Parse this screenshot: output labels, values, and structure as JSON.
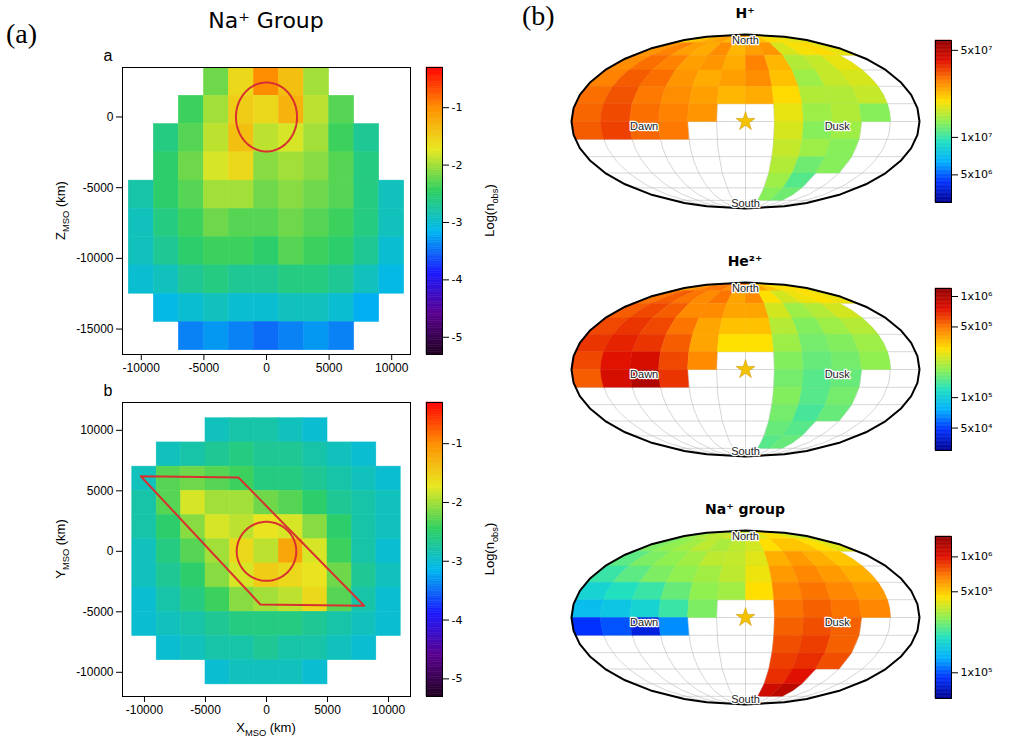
{
  "chart_data": [
    {
      "type": "heatmap",
      "panel": "(a)",
      "group_title": "Na⁺ Group",
      "letter": "a",
      "y_label": [
        "Z",
        "MSO",
        " (km)"
      ],
      "x": [
        -10000,
        -8000,
        -6000,
        -4000,
        -2000,
        0,
        2000,
        4000,
        6000,
        8000,
        10000
      ],
      "y": [
        2500,
        500,
        -1500,
        -3500,
        -5500,
        -7500,
        -9500,
        -11500,
        -13500,
        -15500
      ],
      "z": [
        [
          null,
          null,
          null,
          -2.2,
          -1.6,
          -1.0,
          -1.4,
          -2.0,
          null,
          null,
          null
        ],
        [
          null,
          null,
          -2.4,
          -2.0,
          -1.5,
          -1.6,
          -1.3,
          -1.9,
          -2.3,
          null,
          null
        ],
        [
          null,
          -2.6,
          -2.3,
          -1.9,
          -1.4,
          -1.9,
          -1.8,
          -2.0,
          -2.4,
          -2.7,
          null
        ],
        [
          null,
          -2.5,
          -2.2,
          -1.8,
          -1.6,
          -2.1,
          -2.0,
          -2.1,
          -2.3,
          -2.6,
          null
        ],
        [
          -2.8,
          -2.5,
          -2.3,
          -2.0,
          -2.0,
          -2.2,
          -2.1,
          -2.2,
          -2.3,
          -2.6,
          -2.9
        ],
        [
          -2.9,
          -2.6,
          -2.4,
          -2.2,
          -2.3,
          -2.3,
          -2.2,
          -2.3,
          -2.4,
          -2.6,
          -2.9
        ],
        [
          -2.9,
          -2.7,
          -2.5,
          -2.4,
          -2.4,
          -2.5,
          -2.3,
          -2.4,
          -2.5,
          -2.7,
          -3.0
        ],
        [
          -3.0,
          -2.9,
          -2.7,
          -2.6,
          -2.7,
          -2.7,
          -2.6,
          -2.6,
          -2.7,
          -2.9,
          -3.1
        ],
        [
          null,
          -3.1,
          -3.0,
          -2.9,
          -3.0,
          -3.0,
          -2.9,
          -2.9,
          -3.0,
          -3.2,
          null
        ],
        [
          null,
          null,
          -3.4,
          -3.3,
          -3.4,
          -3.5,
          -3.4,
          -3.3,
          -3.4,
          null,
          null
        ]
      ],
      "xlim": [
        -11500,
        11500
      ],
      "xticks": [
        -10000,
        -5000,
        0,
        5000,
        10000
      ],
      "ylim": [
        -16800,
        3500
      ],
      "yticks": [
        -15000,
        -10000,
        -5000,
        0
      ],
      "colorbar": {
        "label": [
          "Log(n",
          "obs",
          ")"
        ],
        "range": [
          -5.3,
          -0.3
        ],
        "ticks": [
          -5,
          -4,
          -3,
          -2,
          -1
        ]
      },
      "circle": {
        "x": 0,
        "y": 0,
        "r": 2440,
        "color": "#d83030"
      }
    },
    {
      "type": "heatmap",
      "letter": "b",
      "x_label": [
        "X",
        "MSO",
        " (km)"
      ],
      "y_label": [
        "Y",
        "MSO",
        " (km)"
      ],
      "x": [
        -10000,
        -8000,
        -6000,
        -4000,
        -2000,
        0,
        2000,
        4000,
        6000,
        8000,
        10000
      ],
      "y": [
        10000,
        8000,
        6000,
        4000,
        2000,
        0,
        -2000,
        -4000,
        -6000,
        -8000,
        -10000
      ],
      "z": [
        [
          null,
          null,
          null,
          -2.9,
          -2.8,
          -2.8,
          -2.9,
          -3.0,
          null,
          null,
          null
        ],
        [
          null,
          -2.9,
          -2.8,
          -2.7,
          -2.6,
          -2.7,
          -2.7,
          -2.8,
          -2.9,
          -3.0,
          null
        ],
        [
          -2.9,
          -2.3,
          -2.2,
          -2.3,
          -2.4,
          -2.6,
          -2.6,
          -2.7,
          -2.8,
          -2.9,
          -3.0
        ],
        [
          -2.8,
          -2.3,
          -1.8,
          -2.0,
          -2.0,
          -2.2,
          -2.3,
          -2.5,
          -2.7,
          -2.8,
          -2.9
        ],
        [
          -2.8,
          -2.5,
          -2.1,
          -1.8,
          -1.9,
          -1.7,
          -1.8,
          -2.1,
          -2.5,
          -2.8,
          -2.9
        ],
        [
          -2.9,
          -2.6,
          -2.3,
          -2.0,
          -1.6,
          -1.9,
          -1.2,
          -1.8,
          -2.4,
          -2.8,
          -3.0
        ],
        [
          -2.9,
          -2.7,
          -2.5,
          -2.1,
          -1.8,
          -1.5,
          -1.6,
          -1.7,
          -2.2,
          -2.7,
          -2.9
        ],
        [
          -3.0,
          -2.8,
          -2.6,
          -2.4,
          -2.1,
          -2.0,
          -1.9,
          -1.6,
          -2.3,
          -2.8,
          -3.0
        ],
        [
          -3.0,
          -2.9,
          -2.8,
          -2.7,
          -2.6,
          -2.6,
          -2.6,
          -2.7,
          -2.8,
          -2.9,
          -3.0
        ],
        [
          null,
          -3.0,
          -2.9,
          -2.8,
          -2.8,
          -2.7,
          -2.8,
          -2.8,
          -2.9,
          -3.0,
          null
        ],
        [
          null,
          null,
          null,
          -3.0,
          -2.9,
          -2.9,
          -2.9,
          -3.0,
          null,
          null,
          null
        ]
      ],
      "xlim": [
        -11800,
        11800
      ],
      "xticks": [
        -10000,
        -5000,
        0,
        5000,
        10000
      ],
      "ylim": [
        -12000,
        12300
      ],
      "yticks": [
        -10000,
        -5000,
        0,
        5000,
        10000
      ],
      "colorbar": {
        "label": [
          "Log(n",
          "obs",
          ")"
        ],
        "range": [
          -5.3,
          -0.3
        ],
        "ticks": [
          -5,
          -4,
          -3,
          -2,
          -1
        ]
      },
      "circle": {
        "x": 0,
        "y": 0,
        "r": 2440,
        "color": "#d83030"
      },
      "polygon": {
        "points": [
          [
            -10300,
            6200
          ],
          [
            -2300,
            6100
          ],
          [
            8000,
            -4500
          ],
          [
            -500,
            -4400
          ]
        ],
        "color": "#d83030"
      }
    },
    {
      "type": "map",
      "panel": "(b)",
      "title": "H⁺",
      "log": true,
      "lon": [
        -165,
        -135,
        -105,
        -75,
        -45,
        -15,
        15,
        45,
        75,
        105,
        135,
        165
      ],
      "lat": [
        82.5,
        67.5,
        52.5,
        37.5,
        22.5,
        7.5,
        -7.5,
        -22.5,
        -37.5,
        -52.5,
        -67.5
      ],
      "z": [
        [
          20000000.0,
          22000000.0,
          24000000.0,
          25000000.0,
          23000000.0,
          26000000.0,
          24000000.0,
          22000000.0,
          20000000.0,
          19000000.0,
          18000000.0,
          18000000.0
        ],
        [
          26000000.0,
          28000000.0,
          25000000.0,
          24000000.0,
          27000000.0,
          23000000.0,
          25000000.0,
          26000000.0,
          17000000.0,
          19000000.0,
          20000000.0,
          18000000.0
        ],
        [
          27000000.0,
          30000000.0,
          28000000.0,
          25000000.0,
          26000000.0,
          24000000.0,
          28000000.0,
          23000000.0,
          15000000.0,
          16000000.0,
          18000000.0,
          null
        ],
        [
          28000000.0,
          32000000.0,
          30000000.0,
          26000000.0,
          24000000.0,
          25000000.0,
          27000000.0,
          22000000.0,
          14000000.0,
          16000000.0,
          17000000.0,
          null
        ],
        [
          30000000.0,
          33000000.0,
          29000000.0,
          27000000.0,
          25000000.0,
          23000000.0,
          24000000.0,
          20000000.0,
          15000000.0,
          15000000.0,
          16000000.0,
          null
        ],
        [
          31000000.0,
          34000000.0,
          30000000.0,
          28000000.0,
          26000000.0,
          null,
          null,
          18000000.0,
          14000000.0,
          15000000.0,
          13000000.0,
          null
        ],
        [
          32000000.0,
          35000000.0,
          31000000.0,
          29000000.0,
          null,
          null,
          null,
          17000000.0,
          13000000.0,
          14000000.0,
          null,
          null
        ],
        [
          null,
          null,
          null,
          null,
          null,
          null,
          null,
          16000000.0,
          14000000.0,
          13000000.0,
          null,
          null
        ],
        [
          null,
          null,
          null,
          null,
          null,
          null,
          null,
          15000000.0,
          12000000.0,
          13000000.0,
          null,
          null
        ],
        [
          null,
          null,
          null,
          null,
          null,
          null,
          null,
          14000000.0,
          11000000.0,
          null,
          null,
          null
        ],
        [
          null,
          null,
          null,
          null,
          null,
          null,
          null,
          13000000.0,
          12000000.0,
          null,
          null,
          null
        ]
      ],
      "colorbar": {
        "range": [
          3000000.0,
          60000000.0
        ],
        "ticks": [
          {
            "value": 50000000.0,
            "label": "5x10⁷"
          },
          {
            "value": 10000000.0,
            "label": "1x10⁷"
          },
          {
            "value": 5000000.0,
            "label": "5x10⁶"
          }
        ]
      },
      "annotations": [
        {
          "text": "North",
          "lon": 0,
          "lat": 78
        },
        {
          "text": "South",
          "lon": 0,
          "lat": -80
        },
        {
          "text": "Dawn",
          "lon": -105,
          "lat": -4
        },
        {
          "text": "Dusk",
          "lon": 95,
          "lat": -4
        }
      ],
      "sun": {
        "lon": 0,
        "lat": 0
      }
    },
    {
      "type": "map",
      "title": "He²⁺",
      "log": true,
      "lon": [
        -165,
        -135,
        -105,
        -75,
        -45,
        -15,
        15,
        45,
        75,
        105,
        135,
        165
      ],
      "lat": [
        82.5,
        67.5,
        52.5,
        37.5,
        22.5,
        7.5,
        -7.5,
        -22.5,
        -37.5,
        -52.5,
        -67.5
      ],
      "z": [
        [
          400000.0,
          450000.0,
          500000.0,
          500000.0,
          450000.0,
          500000.0,
          450000.0,
          400000.0,
          350000.0,
          300000.0,
          300000.0,
          300000.0
        ],
        [
          500000.0,
          550000.0,
          500000.0,
          450000.0,
          500000.0,
          400000.0,
          450000.0,
          300000.0,
          250000.0,
          280000.0,
          300000.0,
          280000.0
        ],
        [
          550000.0,
          600000.0,
          550000.0,
          450000.0,
          450000.0,
          400000.0,
          400000.0,
          250000.0,
          200000.0,
          220000.0,
          250000.0,
          null
        ],
        [
          600000.0,
          650000.0,
          600000.0,
          500000.0,
          400000.0,
          350000.0,
          350000.0,
          220000.0,
          180000.0,
          200000.0,
          220000.0,
          null
        ],
        [
          650000.0,
          700000.0,
          650000.0,
          550000.0,
          400000.0,
          300000.0,
          300000.0,
          200000.0,
          170000.0,
          180000.0,
          200000.0,
          null
        ],
        [
          600000.0,
          750000.0,
          800000.0,
          600000.0,
          450000.0,
          null,
          null,
          180000.0,
          160000.0,
          170000.0,
          190000.0,
          null
        ],
        [
          550000.0,
          800000.0,
          1000000.0,
          650000.0,
          null,
          null,
          null,
          170000.0,
          150000.0,
          160000.0,
          null,
          null
        ],
        [
          null,
          null,
          null,
          null,
          null,
          null,
          null,
          180000.0,
          150000.0,
          170000.0,
          null,
          null
        ],
        [
          null,
          null,
          null,
          null,
          null,
          null,
          null,
          170000.0,
          140000.0,
          160000.0,
          null,
          null
        ],
        [
          null,
          null,
          null,
          null,
          null,
          null,
          null,
          160000.0,
          150000.0,
          null,
          null,
          null
        ],
        [
          null,
          null,
          null,
          null,
          null,
          null,
          null,
          150000.0,
          160000.0,
          null,
          null,
          null
        ]
      ],
      "colorbar": {
        "range": [
          30000.0,
          1200000.0
        ],
        "ticks": [
          {
            "value": 1000000.0,
            "label": "1x10⁶"
          },
          {
            "value": 500000.0,
            "label": "5x10⁵"
          },
          {
            "value": 100000.0,
            "label": "1x10⁵"
          },
          {
            "value": 50000.0,
            "label": "5x10⁴"
          }
        ]
      },
      "annotations": [
        {
          "text": "North",
          "lon": 0,
          "lat": 78
        },
        {
          "text": "South",
          "lon": 0,
          "lat": -80
        },
        {
          "text": "Dawn",
          "lon": -105,
          "lat": -4
        },
        {
          "text": "Dusk",
          "lon": 95,
          "lat": -4
        }
      ],
      "sun": {
        "lon": 0,
        "lat": 0
      }
    },
    {
      "type": "map",
      "title": "Na⁺ group",
      "log": true,
      "lon": [
        -165,
        -135,
        -105,
        -75,
        -45,
        -15,
        15,
        45,
        75,
        105,
        135,
        165
      ],
      "lat": [
        82.5,
        67.5,
        52.5,
        37.5,
        22.5,
        7.5,
        -7.5,
        -22.5,
        -37.5,
        -52.5,
        -67.5
      ],
      "z": [
        [
          300000.0,
          320000.0,
          350000.0,
          350000.0,
          380000.0,
          350000.0,
          360000.0,
          400000.0,
          450000.0,
          450000.0,
          400000.0,
          350000.0
        ],
        [
          280000.0,
          300000.0,
          320000.0,
          350000.0,
          330000.0,
          350000.0,
          380000.0,
          450000.0,
          500000.0,
          500000.0,
          450000.0,
          400000.0
        ],
        [
          250000.0,
          280000.0,
          300000.0,
          320000.0,
          350000.0,
          360000.0,
          400000.0,
          550000.0,
          600000.0,
          550000.0,
          500000.0,
          null
        ],
        [
          220000.0,
          250000.0,
          280000.0,
          300000.0,
          320000.0,
          350000.0,
          420000.0,
          600000.0,
          650000.0,
          600000.0,
          550000.0,
          null
        ],
        [
          180000.0,
          200000.0,
          220000.0,
          260000.0,
          300000.0,
          320000.0,
          450000.0,
          650000.0,
          700000.0,
          650000.0,
          600000.0,
          null
        ],
        [
          150000.0,
          160000.0,
          180000.0,
          220000.0,
          280000.0,
          null,
          null,
          700000.0,
          750000.0,
          700000.0,
          650000.0,
          null
        ],
        [
          90000.0,
          100000.0,
          80000.0,
          120000.0,
          null,
          null,
          null,
          750000.0,
          800000.0,
          750000.0,
          null,
          null
        ],
        [
          null,
          null,
          null,
          null,
          null,
          null,
          null,
          800000.0,
          850000.0,
          750000.0,
          null,
          null
        ],
        [
          null,
          null,
          null,
          null,
          null,
          null,
          null,
          850000.0,
          900000.0,
          800000.0,
          null,
          null
        ],
        [
          null,
          null,
          null,
          null,
          null,
          null,
          null,
          900000.0,
          1000000.0,
          null,
          null,
          null
        ],
        [
          null,
          null,
          null,
          null,
          null,
          null,
          null,
          1100000.0,
          1200000.0,
          null,
          null,
          null
        ]
      ],
      "colorbar": {
        "range": [
          60000.0,
          1500000.0
        ],
        "ticks": [
          {
            "value": 1000000.0,
            "label": "1x10⁶"
          },
          {
            "value": 500000.0,
            "label": "5x10⁵"
          },
          {
            "value": 100000.0,
            "label": "1x10⁵"
          }
        ]
      },
      "annotations": [
        {
          "text": "North",
          "lon": 0,
          "lat": 78
        },
        {
          "text": "South",
          "lon": 0,
          "lat": -80
        },
        {
          "text": "Dawn",
          "lon": -105,
          "lat": -4
        },
        {
          "text": "Dusk",
          "lon": 95,
          "lat": -4
        }
      ],
      "sun": {
        "lon": 0,
        "lat": 0
      }
    }
  ]
}
